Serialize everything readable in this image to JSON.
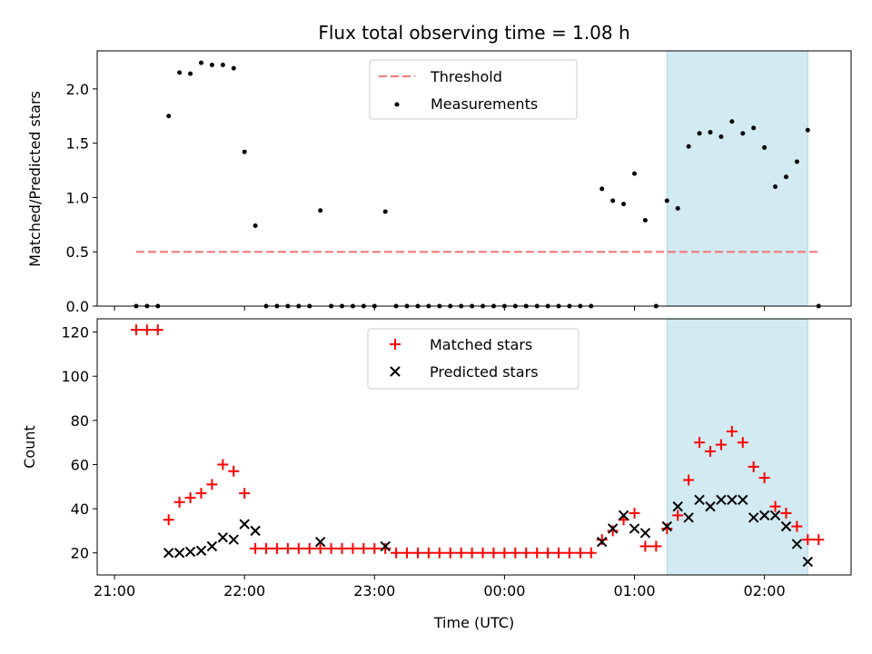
{
  "chart_data": [
    {
      "type": "scatter",
      "title": "Flux total observing time = 1.08 h",
      "ylabel": "Matched/Predicted stars",
      "xlabel": "",
      "ylim": [
        0,
        2.35
      ],
      "xlim": [
        "20:52",
        "02:40"
      ],
      "yticks": [
        "0.0",
        "0.5",
        "1.0",
        "1.5",
        "2.0"
      ],
      "legend": {
        "placement": "upper-center",
        "entries": [
          "Threshold",
          "Measurements"
        ]
      },
      "threshold": {
        "name": "Threshold",
        "value": 0.5,
        "x_start": "21:10",
        "x_end": "02:25",
        "color": "#f08080",
        "style": "dashed"
      },
      "highlight_band": {
        "x_start": "01:15",
        "x_end": "02:20",
        "color": "#add8e6"
      },
      "series": [
        {
          "name": "Measurements",
          "color": "#000000",
          "points": [
            [
              "21:10",
              0.0
            ],
            [
              "21:15",
              0.0
            ],
            [
              "21:20",
              0.0
            ],
            [
              "21:25",
              1.75
            ],
            [
              "21:30",
              2.15
            ],
            [
              "21:35",
              2.14
            ],
            [
              "21:40",
              2.24
            ],
            [
              "21:45",
              2.22
            ],
            [
              "21:50",
              2.22
            ],
            [
              "21:55",
              2.19
            ],
            [
              "22:00",
              1.42
            ],
            [
              "22:05",
              0.74
            ],
            [
              "22:10",
              0.0
            ],
            [
              "22:15",
              0.0
            ],
            [
              "22:20",
              0.0
            ],
            [
              "22:25",
              0.0
            ],
            [
              "22:30",
              0.0
            ],
            [
              "22:35",
              0.88
            ],
            [
              "22:40",
              0.0
            ],
            [
              "22:45",
              0.0
            ],
            [
              "22:50",
              0.0
            ],
            [
              "22:55",
              0.0
            ],
            [
              "23:00",
              0.0
            ],
            [
              "23:05",
              0.87
            ],
            [
              "23:10",
              0.0
            ],
            [
              "23:15",
              0.0
            ],
            [
              "23:20",
              0.0
            ],
            [
              "23:25",
              0.0
            ],
            [
              "23:30",
              0.0
            ],
            [
              "23:35",
              0.0
            ],
            [
              "23:40",
              0.0
            ],
            [
              "23:45",
              0.0
            ],
            [
              "23:50",
              0.0
            ],
            [
              "23:55",
              0.0
            ],
            [
              "00:00",
              0.0
            ],
            [
              "00:05",
              0.0
            ],
            [
              "00:10",
              0.0
            ],
            [
              "00:15",
              0.0
            ],
            [
              "00:20",
              0.0
            ],
            [
              "00:25",
              0.0
            ],
            [
              "00:30",
              0.0
            ],
            [
              "00:35",
              0.0
            ],
            [
              "00:40",
              0.0
            ],
            [
              "00:45",
              1.08
            ],
            [
              "00:50",
              0.97
            ],
            [
              "00:55",
              0.94
            ],
            [
              "01:00",
              1.22
            ],
            [
              "01:05",
              0.79
            ],
            [
              "01:10",
              0.0
            ],
            [
              "01:15",
              0.97
            ],
            [
              "01:20",
              0.9
            ],
            [
              "01:25",
              1.47
            ],
            [
              "01:30",
              1.59
            ],
            [
              "01:35",
              1.6
            ],
            [
              "01:40",
              1.56
            ],
            [
              "01:45",
              1.7
            ],
            [
              "01:50",
              1.59
            ],
            [
              "01:55",
              1.64
            ],
            [
              "02:00",
              1.46
            ],
            [
              "02:05",
              1.1
            ],
            [
              "02:10",
              1.19
            ],
            [
              "02:15",
              1.33
            ],
            [
              "02:20",
              1.62
            ],
            [
              "02:25",
              0.0
            ]
          ]
        }
      ]
    },
    {
      "type": "scatter",
      "title": "",
      "ylabel": "Count",
      "xlabel": "Time (UTC)",
      "ylim": [
        10,
        126
      ],
      "xlim": [
        "20:52",
        "02:40"
      ],
      "yticks": [
        "20",
        "40",
        "60",
        "80",
        "100",
        "120"
      ],
      "xticks": [
        "21:00",
        "22:00",
        "23:00",
        "00:00",
        "01:00",
        "02:00"
      ],
      "legend": {
        "placement": "upper-center",
        "entries": [
          "Matched stars",
          "Predicted stars"
        ]
      },
      "highlight_band": {
        "x_start": "01:15",
        "x_end": "02:20",
        "color": "#add8e6"
      },
      "series": [
        {
          "name": "Matched stars",
          "marker": "+",
          "color": "#ff0000",
          "points": [
            [
              "21:10",
              121
            ],
            [
              "21:15",
              121
            ],
            [
              "21:20",
              121
            ],
            [
              "21:25",
              35
            ],
            [
              "21:30",
              43
            ],
            [
              "21:35",
              45
            ],
            [
              "21:40",
              47
            ],
            [
              "21:45",
              51
            ],
            [
              "21:50",
              60
            ],
            [
              "21:55",
              57
            ],
            [
              "22:00",
              47
            ],
            [
              "22:05",
              22
            ],
            [
              "22:10",
              22
            ],
            [
              "22:15",
              22
            ],
            [
              "22:20",
              22
            ],
            [
              "22:25",
              22
            ],
            [
              "22:30",
              22
            ],
            [
              "22:35",
              22
            ],
            [
              "22:40",
              22
            ],
            [
              "22:45",
              22
            ],
            [
              "22:50",
              22
            ],
            [
              "22:55",
              22
            ],
            [
              "23:00",
              22
            ],
            [
              "23:05",
              22
            ],
            [
              "23:10",
              20
            ],
            [
              "23:15",
              20
            ],
            [
              "23:20",
              20
            ],
            [
              "23:25",
              20
            ],
            [
              "23:30",
              20
            ],
            [
              "23:35",
              20
            ],
            [
              "23:40",
              20
            ],
            [
              "23:45",
              20
            ],
            [
              "23:50",
              20
            ],
            [
              "23:55",
              20
            ],
            [
              "00:00",
              20
            ],
            [
              "00:05",
              20
            ],
            [
              "00:10",
              20
            ],
            [
              "00:15",
              20
            ],
            [
              "00:20",
              20
            ],
            [
              "00:25",
              20
            ],
            [
              "00:30",
              20
            ],
            [
              "00:35",
              20
            ],
            [
              "00:40",
              20
            ],
            [
              "00:45",
              26
            ],
            [
              "00:50",
              30
            ],
            [
              "00:55",
              35
            ],
            [
              "01:00",
              38
            ],
            [
              "01:05",
              23
            ],
            [
              "01:10",
              23
            ],
            [
              "01:15",
              31
            ],
            [
              "01:20",
              37
            ],
            [
              "01:25",
              53
            ],
            [
              "01:30",
              70
            ],
            [
              "01:35",
              66
            ],
            [
              "01:40",
              69
            ],
            [
              "01:45",
              75
            ],
            [
              "01:50",
              70
            ],
            [
              "01:55",
              59
            ],
            [
              "02:00",
              54
            ],
            [
              "02:05",
              41
            ],
            [
              "02:10",
              38
            ],
            [
              "02:15",
              32
            ],
            [
              "02:20",
              26
            ],
            [
              "02:25",
              26
            ]
          ]
        },
        {
          "name": "Predicted stars",
          "marker": "x",
          "color": "#000000",
          "points": [
            [
              "21:25",
              20
            ],
            [
              "21:30",
              20
            ],
            [
              "21:35",
              20.5
            ],
            [
              "21:40",
              21
            ],
            [
              "21:45",
              23
            ],
            [
              "21:50",
              27
            ],
            [
              "21:55",
              26
            ],
            [
              "22:00",
              33
            ],
            [
              "22:05",
              30
            ],
            [
              "22:35",
              25
            ],
            [
              "23:05",
              23
            ],
            [
              "00:45",
              25
            ],
            [
              "00:50",
              31
            ],
            [
              "00:55",
              37
            ],
            [
              "01:00",
              31
            ],
            [
              "01:05",
              29
            ],
            [
              "01:15",
              32
            ],
            [
              "01:20",
              41
            ],
            [
              "01:25",
              36
            ],
            [
              "01:30",
              44
            ],
            [
              "01:35",
              41
            ],
            [
              "01:40",
              44
            ],
            [
              "01:45",
              44
            ],
            [
              "01:50",
              44
            ],
            [
              "01:55",
              36
            ],
            [
              "02:00",
              37
            ],
            [
              "02:05",
              37
            ],
            [
              "02:10",
              32
            ],
            [
              "02:15",
              24
            ],
            [
              "02:20",
              16
            ]
          ]
        }
      ]
    }
  ]
}
